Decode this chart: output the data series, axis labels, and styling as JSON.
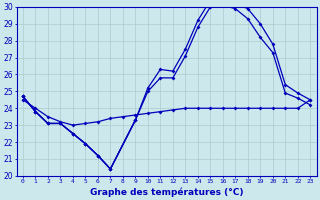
{
  "xlabel": "Graphe des températures (°C)",
  "background_color": "#cce8ec",
  "grid_color": "#aacccc",
  "line_color": "#0000bb",
  "ylim": [
    20,
    30
  ],
  "xlim": [
    -0.5,
    23.5
  ],
  "yticks": [
    20,
    21,
    22,
    23,
    24,
    25,
    26,
    27,
    28,
    29,
    30
  ],
  "xticks": [
    0,
    1,
    2,
    3,
    4,
    5,
    6,
    7,
    8,
    9,
    10,
    11,
    12,
    13,
    14,
    15,
    16,
    17,
    18,
    19,
    20,
    21,
    22,
    23
  ],
  "hours": [
    0,
    1,
    2,
    3,
    4,
    5,
    6,
    7,
    8,
    9,
    10,
    11,
    12,
    13,
    14,
    15,
    16,
    17,
    18,
    19,
    20,
    21,
    22,
    23
  ],
  "line_max": [
    24.7,
    23.8,
    23.1,
    23.1,
    22.5,
    21.9,
    21.2,
    20.4,
    null,
    23.3,
    25.2,
    26.3,
    26.2,
    27.5,
    29.2,
    30.4,
    30.4,
    30.2,
    29.9,
    29.0,
    27.8,
    25.4,
    24.9,
    24.5
  ],
  "line_mid": [
    24.7,
    23.8,
    23.1,
    23.1,
    22.5,
    21.9,
    21.2,
    20.4,
    null,
    23.3,
    25.0,
    25.8,
    25.8,
    27.1,
    28.8,
    30.0,
    30.1,
    29.9,
    29.3,
    28.2,
    27.3,
    24.9,
    24.6,
    24.2
  ],
  "line_min": [
    24.7,
    23.8,
    23.1,
    23.1,
    22.5,
    21.9,
    21.2,
    20.4,
    null,
    23.3,
    null,
    null,
    null,
    null,
    null,
    null,
    null,
    null,
    null,
    null,
    null,
    null,
    null,
    null
  ],
  "line_flat": [
    24.5,
    24.0,
    23.5,
    23.2,
    23.0,
    23.1,
    23.2,
    23.4,
    23.5,
    23.6,
    23.7,
    23.8,
    23.9,
    24.0,
    24.0,
    24.0,
    24.0,
    24.0,
    24.0,
    24.0,
    24.0,
    24.0,
    24.0,
    24.5
  ]
}
